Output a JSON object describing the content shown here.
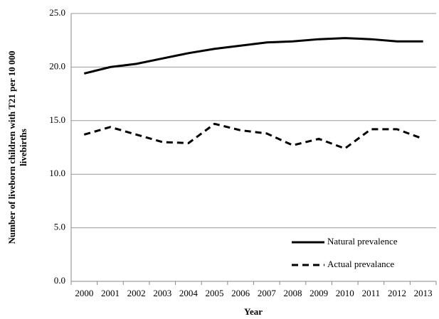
{
  "chart_data": {
    "type": "line",
    "xlabel": "Year",
    "ylabel": [
      "Number of liveborn children with T21 per 10 000",
      "livebirths"
    ],
    "categories": [
      "2000",
      "2001",
      "2002",
      "2003",
      "2004",
      "2005",
      "2006",
      "2007",
      "2008",
      "2009",
      "2010",
      "2011",
      "2012",
      "2013"
    ],
    "series": [
      {
        "name": "Natural prevalence",
        "color": "#000000",
        "linestyle": "solid",
        "values": [
          19.4,
          20.0,
          20.3,
          20.8,
          21.3,
          21.7,
          22.0,
          22.3,
          22.4,
          22.6,
          22.7,
          22.6,
          22.4,
          22.4
        ]
      },
      {
        "name": "Actual prevalance",
        "color": "#000000",
        "linestyle": "dashed",
        "values": [
          13.7,
          14.4,
          13.7,
          13.0,
          12.9,
          14.7,
          14.1,
          13.8,
          12.7,
          13.3,
          12.4,
          14.2,
          14.2,
          13.3
        ]
      }
    ],
    "ylim": [
      0,
      25
    ],
    "yticks": [
      {
        "value": 0,
        "label": "0.0"
      },
      {
        "value": 5,
        "label": "5.0"
      },
      {
        "value": 10,
        "label": "10.0"
      },
      {
        "value": 15,
        "label": "15.0"
      },
      {
        "value": 20,
        "label": "20.0"
      },
      {
        "value": 25,
        "label": "25.0"
      }
    ],
    "grid": true,
    "legend": "lower right"
  }
}
